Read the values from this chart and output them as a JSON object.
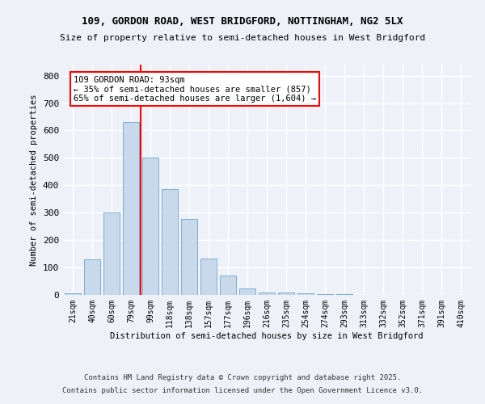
{
  "title1": "109, GORDON ROAD, WEST BRIDGFORD, NOTTINGHAM, NG2 5LX",
  "title2": "Size of property relative to semi-detached houses in West Bridgford",
  "xlabel": "Distribution of semi-detached houses by size in West Bridgford",
  "ylabel": "Number of semi-detached properties",
  "bar_labels": [
    "21sqm",
    "40sqm",
    "60sqm",
    "79sqm",
    "99sqm",
    "118sqm",
    "138sqm",
    "157sqm",
    "177sqm",
    "196sqm",
    "216sqm",
    "235sqm",
    "254sqm",
    "274sqm",
    "293sqm",
    "313sqm",
    "332sqm",
    "352sqm",
    "371sqm",
    "391sqm",
    "410sqm"
  ],
  "bar_values": [
    5,
    130,
    300,
    630,
    500,
    385,
    278,
    132,
    70,
    25,
    10,
    8,
    5,
    3,
    2,
    0,
    0,
    0,
    0,
    0,
    0
  ],
  "bar_color": "#c9d9ec",
  "bar_edge_color": "#7aafd4",
  "vline_x_index": 3.5,
  "vline_color": "red",
  "annotation_title": "109 GORDON ROAD: 93sqm",
  "annotation_line1": "← 35% of semi-detached houses are smaller (857)",
  "annotation_line2": "65% of semi-detached houses are larger (1,604) →",
  "annotation_box_color": "red",
  "annotation_bg": "white",
  "footer1": "Contains HM Land Registry data © Crown copyright and database right 2025.",
  "footer2": "Contains public sector information licensed under the Open Government Licence v3.0.",
  "ylim": [
    0,
    840
  ],
  "yticks": [
    0,
    100,
    200,
    300,
    400,
    500,
    600,
    700,
    800
  ],
  "background_color": "#eef2f8",
  "grid_color": "#ffffff"
}
